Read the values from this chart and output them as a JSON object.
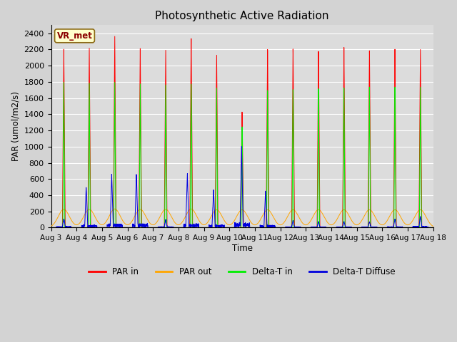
{
  "title": "Photosynthetic Active Radiation",
  "ylabel": "PAR (umol/m2/s)",
  "xlabel": "Time",
  "annotation": "VR_met",
  "background_color": "#dcdcdc",
  "fig_facecolor": "#d3d3d3",
  "ylim": [
    0,
    2500
  ],
  "yticks": [
    0,
    200,
    400,
    600,
    800,
    1000,
    1200,
    1400,
    1600,
    1800,
    2000,
    2200,
    2400
  ],
  "x_tick_labels": [
    "Aug 3",
    "Aug 4",
    "Aug 5",
    "Aug 6",
    "Aug 7",
    "Aug 8",
    "Aug 9",
    "Aug 10",
    "Aug 11",
    "Aug 12",
    "Aug 13",
    "Aug 14",
    "Aug 15",
    "Aug 16",
    "Aug 17",
    "Aug 18"
  ],
  "num_days": 15,
  "points_per_day": 288,
  "par_in_peaks": [
    2230,
    2230,
    2380,
    2250,
    2260,
    2360,
    2180,
    1450,
    2240,
    2240,
    2230,
    2230,
    2230,
    2200,
    2180
  ],
  "par_out_peaks": [
    225,
    225,
    230,
    225,
    225,
    230,
    220,
    220,
    220,
    220,
    220,
    220,
    220,
    220,
    220
  ],
  "delta_t_in_peaks": [
    1800,
    1800,
    1820,
    1810,
    1810,
    1830,
    1790,
    1300,
    1760,
    1760,
    1760,
    1760,
    1760,
    1750,
    1740
  ],
  "delta_t_diff_peaks": [
    100,
    490,
    640,
    640,
    90,
    640,
    450,
    970,
    430,
    80,
    70,
    70,
    70,
    100,
    130
  ],
  "par_in_color": "#ff0000",
  "par_out_color": "#ffa500",
  "delta_t_in_color": "#00ee00",
  "delta_t_diff_color": "#0000dd",
  "legend_labels": [
    "PAR in",
    "PAR out",
    "Delta-T in",
    "Delta-T Diffuse"
  ]
}
